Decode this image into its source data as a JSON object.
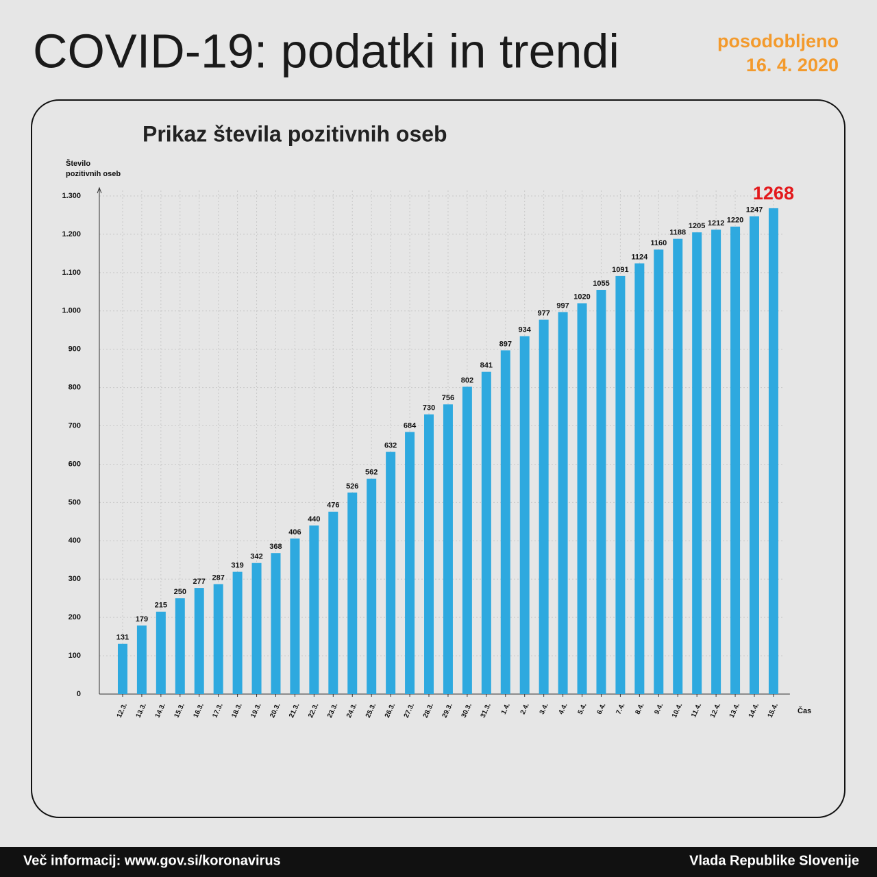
{
  "header": {
    "title": "COVID-19: podatki in trendi",
    "updated_label": "posodobljeno",
    "updated_date": "16. 4. 2020"
  },
  "footer": {
    "info": "Več informacij: www.gov.si/koronavirus",
    "author": "Vlada Republike Slovenije"
  },
  "chart_data": {
    "type": "bar",
    "title": "Prikaz števila pozitivnih oseb",
    "ylabel": [
      "Število",
      "pozitivnih oseb"
    ],
    "xlabel": "Čas",
    "categories": [
      "12.3.",
      "13.3.",
      "14.3.",
      "15.3.",
      "16.3.",
      "17.3.",
      "18.3.",
      "19.3.",
      "20.3.",
      "21.3.",
      "22.3.",
      "23.3.",
      "24.3.",
      "25.3.",
      "26.3.",
      "27.3.",
      "28.3.",
      "29.3.",
      "30.3.",
      "31.3.",
      "1.4.",
      "2.4.",
      "3.4.",
      "4.4.",
      "5.4.",
      "6.4.",
      "7.4.",
      "8.4.",
      "9.4.",
      "10.4.",
      "11.4.",
      "12.4.",
      "13.4.",
      "14.4.",
      "15.4."
    ],
    "values": [
      131,
      179,
      215,
      250,
      277,
      287,
      319,
      342,
      368,
      406,
      440,
      476,
      526,
      562,
      632,
      684,
      730,
      756,
      802,
      841,
      897,
      934,
      977,
      997,
      1020,
      1055,
      1091,
      1124,
      1160,
      1188,
      1205,
      1212,
      1220,
      1247,
      1268
    ],
    "color": "#2ea9df",
    "last_label_color": "#e3191c",
    "ylim": [
      0,
      1300
    ],
    "yticks": [
      0,
      100,
      200,
      300,
      400,
      500,
      600,
      700,
      800,
      900,
      {
        "value": 1000,
        "label": "1.000"
      },
      {
        "value": 1100,
        "label": "1.100"
      },
      {
        "value": 1200,
        "label": "1.200"
      },
      {
        "value": 1300,
        "label": "1.300"
      }
    ],
    "grid": true
  }
}
